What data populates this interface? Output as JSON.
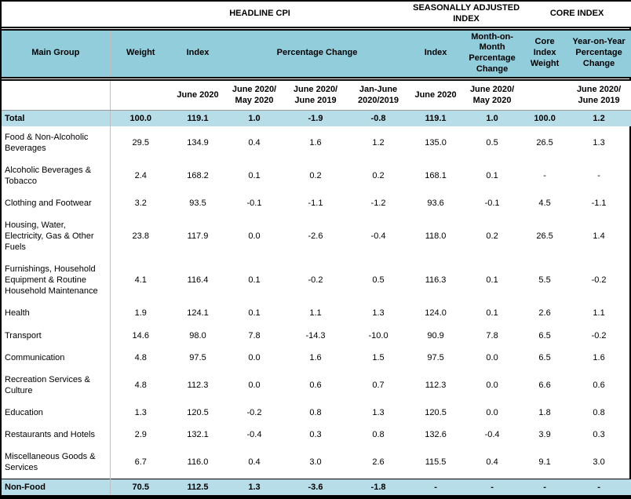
{
  "colors": {
    "header_band": "#92CDDC",
    "highlight_row": "#B7DEE8",
    "gridline": "#BFBFBF",
    "border": "#000000",
    "text": "#000000"
  },
  "table": {
    "top_headers": {
      "blank": "",
      "headline": "HEADLINE CPI",
      "seasonally_adjusted": "SEASONALLY ADJUSTED INDEX",
      "core": "CORE INDEX"
    },
    "band_headers": {
      "main_group": "Main Group",
      "weight": "Weight",
      "index": "Index",
      "percentage_change": "Percentage Change",
      "sa_index": "Index",
      "mom_change": "Month-on-Month Percentage Change",
      "core_weight": "Core Index Weight",
      "yoy_change": "Year-on-Year Percentage Change"
    },
    "sub_headers": [
      "",
      "",
      "June 2020",
      "June 2020/ May 2020",
      "June 2020/ June 2019",
      "Jan-June 2020/2019",
      "June 2020",
      "June 2020/ May 2020",
      "",
      "June 2020/ June 2019"
    ],
    "rows": [
      {
        "group": "Total",
        "highlight": true,
        "values": [
          "100.0",
          "119.1",
          "1.0",
          "-1.9",
          "-0.8",
          "119.1",
          "1.0",
          "100.0",
          "1.2"
        ]
      },
      {
        "group": "Food & Non-Alcoholic Beverages",
        "highlight": false,
        "values": [
          "29.5",
          "134.9",
          "0.4",
          "1.6",
          "1.2",
          "135.0",
          "0.5",
          "26.5",
          "1.3"
        ]
      },
      {
        "group": "Alcoholic Beverages & Tobacco",
        "highlight": false,
        "values": [
          "2.4",
          "168.2",
          "0.1",
          "0.2",
          "0.2",
          "168.1",
          "0.1",
          "-",
          "-"
        ]
      },
      {
        "group": "Clothing and Footwear",
        "highlight": false,
        "values": [
          "3.2",
          "93.5",
          "-0.1",
          "-1.1",
          "-1.2",
          "93.6",
          "-0.1",
          "4.5",
          "-1.1"
        ]
      },
      {
        "group": "Housing, Water, Electricity, Gas & Other Fuels",
        "highlight": false,
        "values": [
          "23.8",
          "117.9",
          "0.0",
          "-2.6",
          "-0.4",
          "118.0",
          "0.2",
          "26.5",
          "1.4"
        ]
      },
      {
        "group": "Furnishings, Household Equipment  & Routine Household Maintenance",
        "highlight": false,
        "values": [
          "4.1",
          "116.4",
          "0.1",
          "-0.2",
          "0.5",
          "116.3",
          "0.1",
          "5.5",
          "-0.2"
        ]
      },
      {
        "group": "Health",
        "highlight": false,
        "values": [
          "1.9",
          "124.1",
          "0.1",
          "1.1",
          "1.3",
          "124.0",
          "0.1",
          "2.6",
          "1.1"
        ]
      },
      {
        "group": "Transport",
        "highlight": false,
        "values": [
          "14.6",
          "98.0",
          "7.8",
          "-14.3",
          "-10.0",
          "90.9",
          "7.8",
          "6.5",
          "-0.2"
        ]
      },
      {
        "group": "Communication",
        "highlight": false,
        "values": [
          "4.8",
          "97.5",
          "0.0",
          "1.6",
          "1.5",
          "97.5",
          "0.0",
          "6.5",
          "1.6"
        ]
      },
      {
        "group": "Recreation Services & Culture",
        "highlight": false,
        "values": [
          "4.8",
          "112.3",
          "0.0",
          "0.6",
          "0.7",
          "112.3",
          "0.0",
          "6.6",
          "0.6"
        ]
      },
      {
        "group": "Education",
        "highlight": false,
        "values": [
          "1.3",
          "120.5",
          "-0.2",
          "0.8",
          "1.3",
          "120.5",
          "0.0",
          "1.8",
          "0.8"
        ]
      },
      {
        "group": "Restaurants and Hotels",
        "highlight": false,
        "values": [
          "2.9",
          "132.1",
          "-0.4",
          "0.3",
          "0.8",
          "132.6",
          "-0.4",
          "3.9",
          "0.3"
        ]
      },
      {
        "group": "Miscellaneous Goods & Services",
        "highlight": false,
        "values": [
          "6.7",
          "116.0",
          "0.4",
          "3.0",
          "2.6",
          "115.5",
          "0.4",
          "9.1",
          "3.0"
        ]
      },
      {
        "group": "Non-Food",
        "highlight": true,
        "values": [
          "70.5",
          "112.5",
          "1.3",
          "-3.6",
          "-1.8",
          "-",
          "-",
          "-",
          "-"
        ]
      }
    ]
  }
}
